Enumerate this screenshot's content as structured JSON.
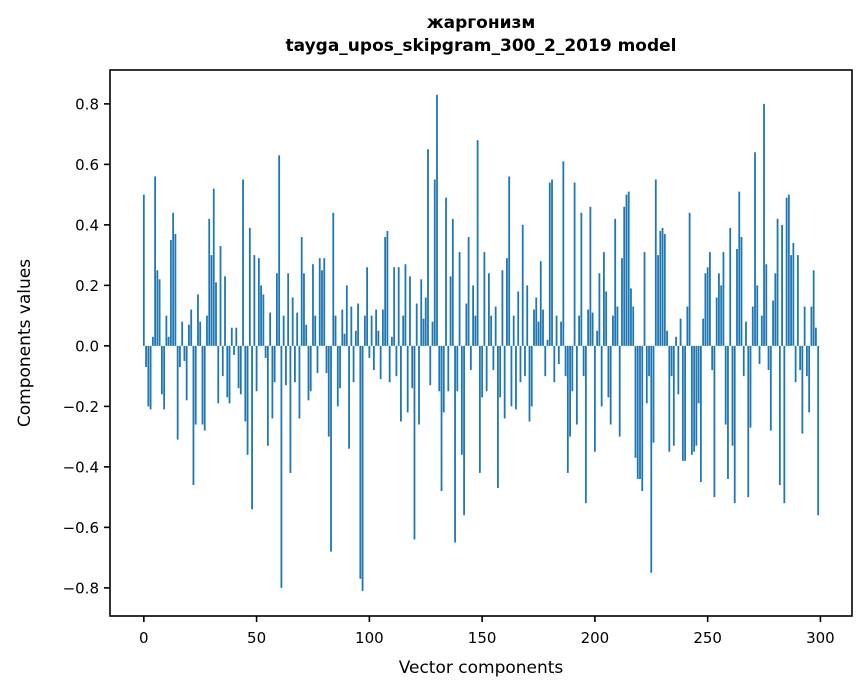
{
  "figure": {
    "title_line1": "жаргонизм",
    "title_line2": "tayga_upos_skipgram_300_2_2019 model",
    "xlabel": "Vector components",
    "ylabel": "Components values"
  },
  "chart_data": {
    "type": "bar",
    "title": "жаргонизм",
    "subtitle": "tayga_upos_skipgram_300_2_2019 model",
    "xlabel": "Vector components",
    "ylabel": "Components values",
    "bar_color": "#1f77b4",
    "spine_color": "#000000",
    "grid": false,
    "legend_position": "none",
    "n_components": 300,
    "x_ticks": [
      0,
      50,
      100,
      150,
      200,
      250,
      300
    ],
    "y_ticks": [
      -0.8,
      -0.6,
      -0.4,
      -0.2,
      0.0,
      0.2,
      0.4,
      0.6,
      0.8
    ],
    "xlim": [
      -15.0,
      314.0
    ],
    "ylim": [
      -0.893,
      0.912
    ],
    "bar_width_units": 0.8,
    "values": [
      0.5,
      -0.07,
      -0.2,
      -0.21,
      0.03,
      0.56,
      0.25,
      0.22,
      -0.16,
      -0.21,
      0.1,
      0.03,
      0.35,
      0.44,
      0.37,
      -0.31,
      -0.07,
      0.08,
      -0.05,
      -0.18,
      0.07,
      0.12,
      -0.46,
      -0.26,
      0.17,
      0.08,
      -0.26,
      -0.28,
      0.1,
      0.42,
      0.3,
      0.52,
      0.21,
      -0.19,
      0.33,
      -0.1,
      0.23,
      -0.17,
      -0.19,
      0.06,
      -0.03,
      0.06,
      -0.14,
      -0.16,
      0.55,
      -0.25,
      -0.36,
      0.39,
      -0.54,
      0.3,
      -0.15,
      0.29,
      0.2,
      0.17,
      -0.04,
      -0.33,
      0.11,
      -0.24,
      -0.12,
      0.24,
      0.63,
      -0.8,
      0.1,
      -0.13,
      0.24,
      -0.42,
      0.16,
      -0.12,
      0.11,
      -0.24,
      0.36,
      0.24,
      0.07,
      -0.18,
      -0.15,
      0.27,
      0.1,
      -0.09,
      0.29,
      0.25,
      0.29,
      -0.09,
      -0.3,
      -0.68,
      0.44,
      0.1,
      -0.2,
      -0.14,
      0.12,
      0.04,
      0.2,
      -0.34,
      0.13,
      -0.12,
      0.05,
      0.14,
      -0.77,
      -0.81,
      0.1,
      0.26,
      -0.04,
      0.1,
      -0.08,
      0.12,
      0.05,
      -0.11,
      0.12,
      0.36,
      0.38,
      -0.12,
      0.03,
      0.26,
      -0.1,
      0.26,
      -0.25,
      0.1,
      0.27,
      -0.22,
      0.23,
      -0.14,
      -0.64,
      0.14,
      -0.26,
      0.22,
      0.09,
      0.16,
      0.65,
      -0.13,
      0.08,
      0.55,
      0.83,
      -0.15,
      -0.48,
      -0.22,
      0.49,
      -0.15,
      0.23,
      0.42,
      -0.65,
      -0.15,
      0.31,
      -0.36,
      -0.56,
      0.14,
      0.36,
      -0.08,
      0.2,
      0.1,
      0.68,
      -0.42,
      -0.17,
      0.31,
      -0.15,
      0.24,
      0.1,
      -0.08,
      0.13,
      -0.47,
      -0.17,
      0.25,
      -0.24,
      0.29,
      0.56,
      -0.2,
      0.1,
      -0.21,
      0.18,
      -0.12,
      0.4,
      -0.1,
      0.2,
      -0.25,
      -0.2,
      0.12,
      0.16,
      0.08,
      0.28,
      0.12,
      -0.1,
      0.02,
      0.54,
      0.55,
      -0.12,
      0.1,
      -0.06,
      0.08,
      0.61,
      -0.1,
      -0.42,
      -0.3,
      -0.15,
      0.54,
      -0.26,
      0.1,
      0.44,
      -0.1,
      -0.52,
      0.12,
      0.46,
      0.11,
      -0.35,
      0.05,
      0.24,
      -0.2,
      0.31,
      0.18,
      -0.17,
      -0.26,
      0.1,
      0.42,
      0.13,
      -0.3,
      0.29,
      0.46,
      0.5,
      0.51,
      0.19,
      0.13,
      -0.37,
      -0.44,
      -0.44,
      -0.48,
      0.31,
      -0.19,
      -0.1,
      -0.75,
      -0.32,
      0.55,
      0.3,
      0.38,
      0.39,
      0.37,
      0.05,
      -0.35,
      -0.1,
      -0.33,
      0.03,
      -0.16,
      0.09,
      -0.38,
      -0.38,
      0.13,
      0.44,
      -0.36,
      -0.35,
      -0.33,
      -0.19,
      -0.45,
      0.09,
      0.24,
      0.26,
      0.31,
      -0.08,
      -0.5,
      0.16,
      0.24,
      0.2,
      0.31,
      -0.26,
      -0.44,
      0.39,
      -0.33,
      -0.52,
      0.32,
      0.51,
      0.36,
      -0.1,
      0.08,
      -0.5,
      -0.27,
      0.13,
      0.64,
      0.2,
      -0.06,
      0.1,
      0.8,
      0.27,
      -0.08,
      -0.28,
      0.15,
      0.24,
      0.42,
      -0.46,
      0.4,
      -0.52,
      0.49,
      0.5,
      0.3,
      0.34,
      -0.12,
      0.3,
      -0.08,
      -0.29,
      0.13,
      -0.1,
      -0.22,
      0.13,
      0.25,
      0.06,
      -0.56
    ]
  }
}
